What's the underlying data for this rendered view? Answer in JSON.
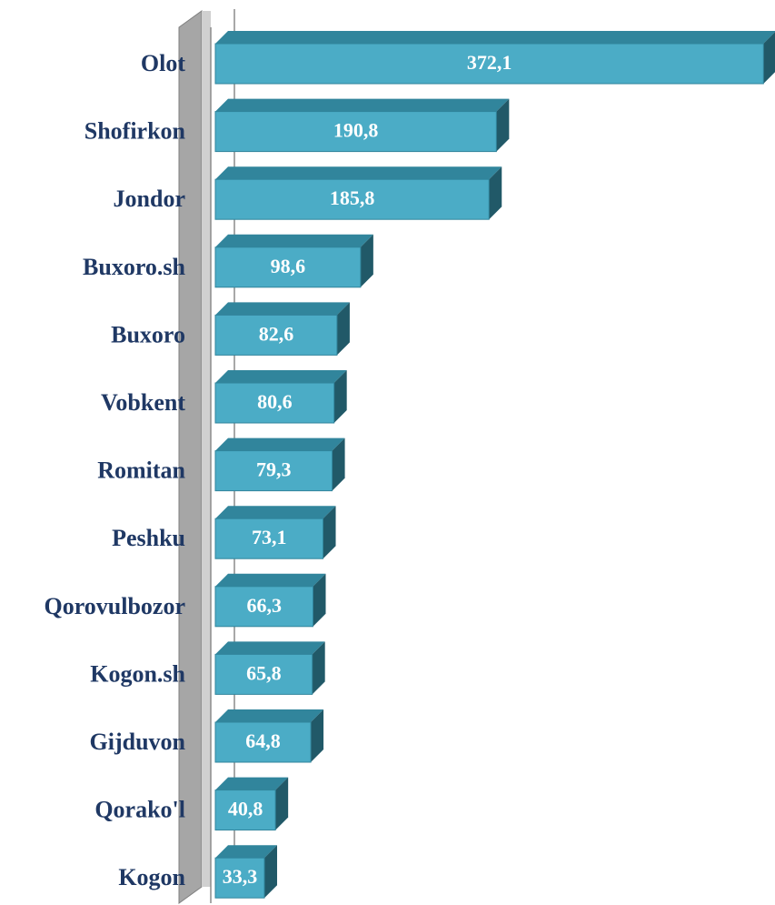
{
  "chart_data": {
    "type": "bar",
    "orientation": "horizontal",
    "categories": [
      "Olot",
      "Shofirkon",
      "Jondor",
      "Buxoro.sh",
      "Buxoro",
      "Vobkent",
      "Romitan",
      "Peshku",
      "Qorovulbozor",
      "Kogon.sh",
      "Gijduvon",
      "Qorako'l",
      "Kogon"
    ],
    "values": [
      372.1,
      190.8,
      185.8,
      98.6,
      82.6,
      80.6,
      79.3,
      73.1,
      66.3,
      65.8,
      64.8,
      40.8,
      33.3
    ],
    "value_labels": [
      "372,1",
      "190,8",
      "185,8",
      "98,6",
      "82,6",
      "80,6",
      "79,3",
      "73,1",
      "66,3",
      "65,8",
      "64,8",
      "40,8",
      "33,3"
    ],
    "color": "#4bacc6",
    "xlim": [
      0,
      375
    ]
  }
}
